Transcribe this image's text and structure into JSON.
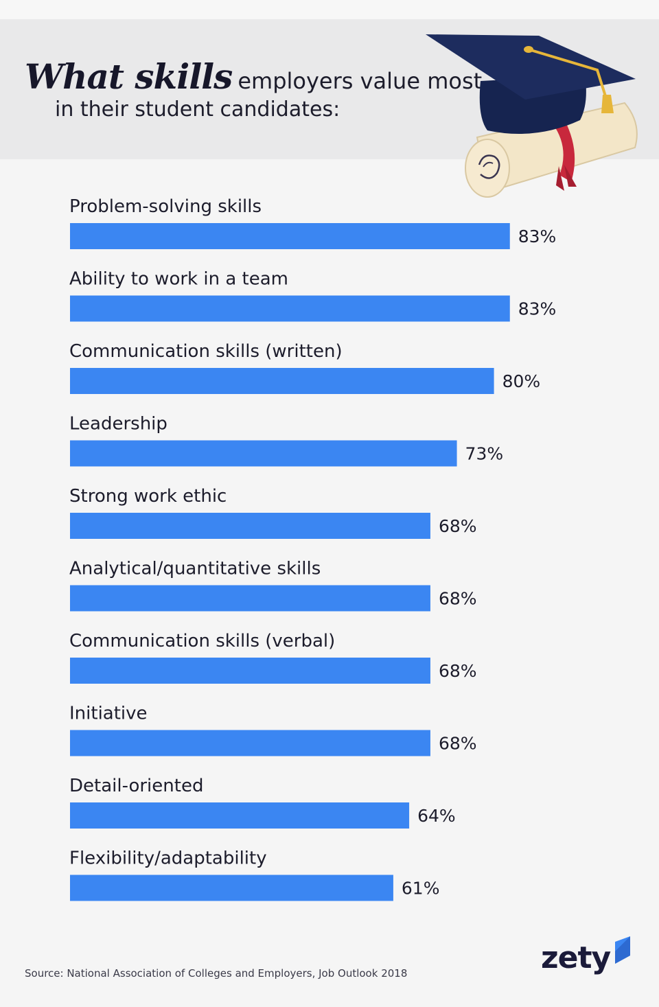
{
  "header": {
    "title_script": "What skills",
    "title_rest": "employers value most",
    "title_line2": "in their student candidates:"
  },
  "colors": {
    "bar": "#3b86f2",
    "header_band": "#e9e9ea",
    "background": "#f5f5f5"
  },
  "chart_data": {
    "type": "bar",
    "orientation": "horizontal",
    "categories": [
      "Problem-solving skills",
      "Ability to work in a team",
      "Communication skills (written)",
      "Leadership",
      "Strong work ethic",
      "Analytical/quantitative skills",
      "Communication skills (verbal)",
      "Initiative",
      "Detail-oriented",
      "Flexibility/adaptability"
    ],
    "values": [
      83,
      83,
      80,
      73,
      68,
      68,
      68,
      68,
      64,
      61
    ],
    "value_labels": [
      "83%",
      "83%",
      "80%",
      "73%",
      "68%",
      "68%",
      "68%",
      "68%",
      "64%",
      "61%"
    ],
    "unit": "%",
    "xlim": [
      0,
      100
    ],
    "grid": false,
    "legend": "none"
  },
  "source": "Source: National Association of Colleges and Employers, Job Outlook 2018",
  "logo": {
    "text": "zety"
  },
  "illustration_icons": [
    "graduation-cap-icon",
    "diploma-scroll-icon"
  ]
}
